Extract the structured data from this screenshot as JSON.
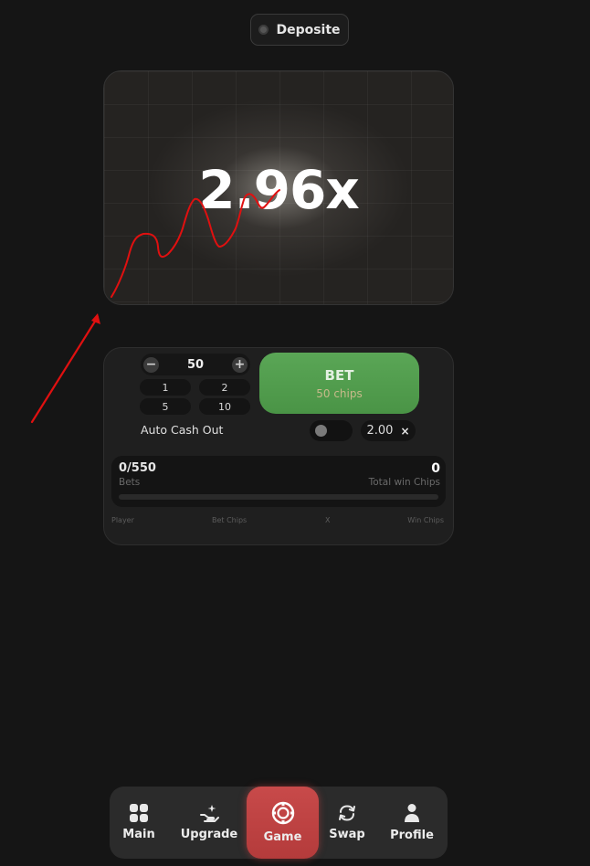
{
  "header": {
    "deposit_label": "Deposite"
  },
  "game": {
    "multiplier": "2.96x"
  },
  "bet_panel": {
    "minus_symbol": "−",
    "plus_symbol": "+",
    "amount": "50",
    "quick_amounts": [
      "1",
      "2",
      "5",
      "10"
    ],
    "bet_label": "BET",
    "bet_sub": "50 chips",
    "auto_cashout_label": "Auto Cash Out",
    "auto_cashout_enabled": false,
    "auto_cashout_value": "2.00",
    "clear_symbol": "×"
  },
  "stats": {
    "bets_count": "0/550",
    "bets_label": "Bets",
    "win_count": "0",
    "win_label": "Total win Chips",
    "columns": [
      "Player",
      "Bet Chips",
      "X",
      "Win Chips"
    ]
  },
  "nav": {
    "items": [
      {
        "label": "Main",
        "icon": "grid-icon"
      },
      {
        "label": "Upgrade",
        "icon": "upgrade-hand-icon"
      },
      {
        "label": "Game",
        "icon": "chip-icon",
        "active": true
      },
      {
        "label": "Swap",
        "icon": "swap-icon"
      },
      {
        "label": "Profile",
        "icon": "profile-icon"
      }
    ]
  },
  "colors": {
    "background": "#151515",
    "bet_green": "#52a04e",
    "nav_active_red": "#c04444",
    "annotation_red": "#e01010"
  }
}
